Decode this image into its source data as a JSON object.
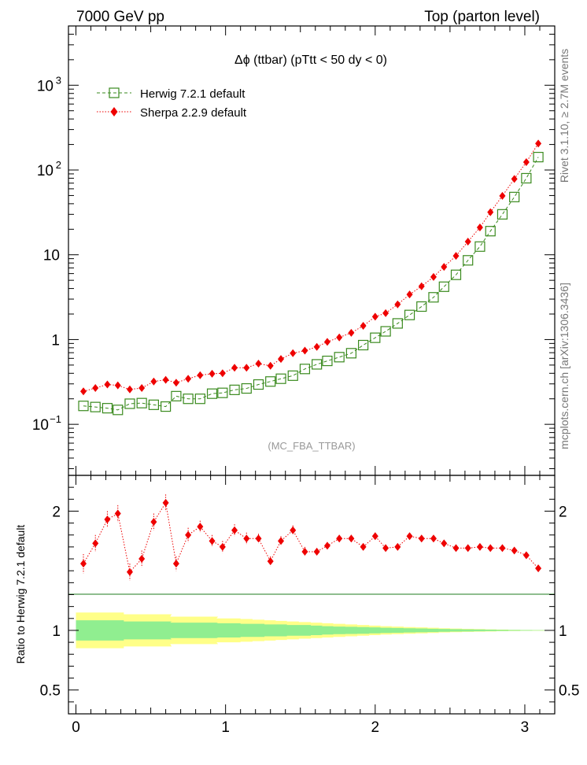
{
  "header": {
    "left": "7000 GeV pp",
    "right": "Top (parton level)"
  },
  "side_labels": {
    "rivet": "Rivet 3.1.10, ≥ 2.7M events",
    "mcplots": "mcplots.cern.ch [arXiv:1306.3436]"
  },
  "watermark": "(MC_FBA_TTBAR)",
  "colors": {
    "herwig": "#3a8a1e",
    "sherpa": "#ee0000",
    "band_inner": "#90ee90",
    "band_outer": "#ffff88"
  },
  "chart_data": [
    {
      "type": "scatter",
      "panel": "main",
      "title": "Δϕ (ttbar) (pTtt < 50 dy < 0)",
      "xlabel": "",
      "ylabel": "",
      "log_y": true,
      "xlim": [
        -0.05,
        3.2
      ],
      "ylim": [
        0.025,
        5000
      ],
      "y_ticks": [
        {
          "value": 0.1,
          "label": "10",
          "exp": "−1"
        },
        {
          "value": 1,
          "label": "1",
          "exp": ""
        },
        {
          "value": 10,
          "label": "10",
          "exp": ""
        },
        {
          "value": 100,
          "label": "10",
          "exp": "2"
        },
        {
          "value": 1000,
          "label": "10",
          "exp": "3"
        }
      ],
      "legend_position": "top-left",
      "x": [
        0.05,
        0.13,
        0.21,
        0.28,
        0.36,
        0.44,
        0.52,
        0.6,
        0.67,
        0.75,
        0.83,
        0.91,
        0.98,
        1.06,
        1.14,
        1.22,
        1.3,
        1.37,
        1.45,
        1.53,
        1.61,
        1.68,
        1.76,
        1.84,
        1.92,
        2.0,
        2.07,
        2.15,
        2.23,
        2.31,
        2.39,
        2.46,
        2.54,
        2.62,
        2.7,
        2.77,
        2.85,
        2.93,
        3.01,
        3.09
      ],
      "series": [
        {
          "name": "Herwig 7.2.1 default",
          "marker": "open-square",
          "line": "dashed",
          "values": [
            0.165,
            0.16,
            0.155,
            0.148,
            0.175,
            0.178,
            0.17,
            0.162,
            0.215,
            0.2,
            0.2,
            0.23,
            0.235,
            0.255,
            0.265,
            0.295,
            0.32,
            0.345,
            0.375,
            0.45,
            0.51,
            0.56,
            0.62,
            0.69,
            0.86,
            1.05,
            1.25,
            1.55,
            1.95,
            2.45,
            3.15,
            4.2,
            5.8,
            8.6,
            12.5,
            19.0,
            30.0,
            48.0,
            80.0,
            142.0
          ]
        },
        {
          "name": "Sherpa 2.2.9 default",
          "marker": "filled-diamond",
          "line": "dotted",
          "values": [
            0.245,
            0.268,
            0.295,
            0.288,
            0.258,
            0.268,
            0.32,
            0.335,
            0.31,
            0.345,
            0.38,
            0.395,
            0.4,
            0.465,
            0.465,
            0.52,
            0.49,
            0.59,
            0.69,
            0.74,
            0.82,
            0.94,
            1.06,
            1.2,
            1.45,
            1.86,
            2.05,
            2.6,
            3.4,
            4.25,
            5.48,
            7.2,
            9.7,
            14.3,
            21.0,
            31.8,
            49.5,
            78.5,
            124.0,
            205.0
          ]
        }
      ]
    },
    {
      "type": "scatter",
      "panel": "ratio",
      "ylabel": "Ratio to Herwig 7.2.1 default",
      "xlim": [
        -0.05,
        3.2
      ],
      "ylim": [
        0.3,
        2.3
      ],
      "x_ticks": [
        0,
        1,
        2,
        3
      ],
      "y_ticks": [
        0.5,
        1,
        2
      ],
      "x": [
        0.05,
        0.13,
        0.21,
        0.28,
        0.36,
        0.44,
        0.52,
        0.6,
        0.67,
        0.75,
        0.83,
        0.91,
        0.98,
        1.06,
        1.14,
        1.22,
        1.3,
        1.37,
        1.45,
        1.53,
        1.61,
        1.68,
        1.76,
        1.84,
        1.92,
        2.0,
        2.07,
        2.15,
        2.23,
        2.31,
        2.39,
        2.46,
        2.54,
        2.62,
        2.7,
        2.77,
        2.85,
        2.93,
        3.01,
        3.09
      ],
      "series": [
        {
          "name": "Sherpa 2.2.9 default",
          "values": [
            1.56,
            1.73,
            1.93,
            1.98,
            1.49,
            1.6,
            1.91,
            2.07,
            1.56,
            1.8,
            1.87,
            1.75,
            1.7,
            1.84,
            1.77,
            1.77,
            1.58,
            1.75,
            1.84,
            1.66,
            1.66,
            1.71,
            1.77,
            1.77,
            1.7,
            1.79,
            1.69,
            1.7,
            1.79,
            1.77,
            1.77,
            1.73,
            1.69,
            1.69,
            1.7,
            1.69,
            1.69,
            1.67,
            1.63,
            1.52
          ],
          "errors": [
            0.08,
            0.07,
            0.07,
            0.07,
            0.07,
            0.07,
            0.07,
            0.07,
            0.06,
            0.06,
            0.05,
            0.05,
            0.05,
            0.05,
            0.05,
            0.04,
            0.04,
            0.04,
            0.04,
            0.04,
            0.03,
            0.03,
            0.03,
            0.03,
            0.03,
            0.03,
            0.02,
            0.02,
            0.02,
            0.02,
            0.02,
            0.02,
            0.02,
            0.02,
            0.01,
            0.01,
            0.01,
            0.01,
            0.01,
            0.01
          ]
        }
      ],
      "band_inner_halfwidth": [
        0.085,
        0.085,
        0.085,
        0.085,
        0.075,
        0.075,
        0.075,
        0.075,
        0.065,
        0.065,
        0.065,
        0.065,
        0.06,
        0.06,
        0.055,
        0.055,
        0.05,
        0.05,
        0.045,
        0.045,
        0.04,
        0.035,
        0.032,
        0.03,
        0.028,
        0.025,
        0.022,
        0.02,
        0.018,
        0.016,
        0.014,
        0.012,
        0.01,
        0.009,
        0.008,
        0.006,
        0.005,
        0.004,
        0.003,
        0.002
      ],
      "band_outer_halfwidth": [
        0.15,
        0.15,
        0.15,
        0.15,
        0.135,
        0.135,
        0.135,
        0.135,
        0.115,
        0.115,
        0.115,
        0.115,
        0.1,
        0.1,
        0.095,
        0.09,
        0.085,
        0.08,
        0.075,
        0.07,
        0.065,
        0.06,
        0.055,
        0.05,
        0.045,
        0.04,
        0.035,
        0.032,
        0.028,
        0.025,
        0.022,
        0.018,
        0.015,
        0.013,
        0.011,
        0.009,
        0.007,
        0.005,
        0.004,
        0.003
      ]
    }
  ]
}
